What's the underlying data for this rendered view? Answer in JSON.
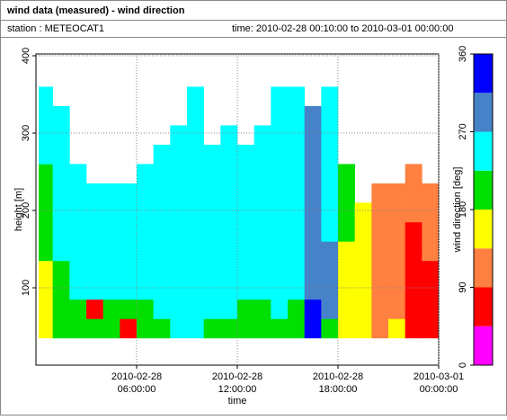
{
  "header": {
    "title": "wind data (measured) - wind direction",
    "station": "station : METEOCAT1",
    "time": "time: 2010-02-28 00:10:00 to 2010-03-01 00:00:00"
  },
  "chart_data": {
    "type": "heatmap",
    "xlabel": "time",
    "ylabel": "height [m]",
    "zlabel": "wind direction [deg]",
    "xlim": [
      "2010-02-28 00:00:00",
      "2010-03-01 00:00:00"
    ],
    "xticks": [
      "2010-02-28 06:00:00",
      "2010-02-28 12:00:00",
      "2010-02-28 18:00:00",
      "2010-03-01 00:00:00"
    ],
    "ylim": [
      0,
      400
    ],
    "yticks": [
      100,
      200,
      300,
      400
    ],
    "zlim": [
      0,
      360
    ],
    "zticks": [
      0,
      90,
      180,
      270,
      360
    ],
    "colors": [
      "#ff00ff",
      "#ff0000",
      "#ff8040",
      "#ffff00",
      "#00e000",
      "#00ffff",
      "#4682c8",
      "#0000ff"
    ],
    "grid": true,
    "xbins": [
      "2010-02-28 00:10:00",
      "2010-02-28 01:00:00",
      "2010-02-28 02:00:00",
      "2010-02-28 03:00:00",
      "2010-02-28 04:00:00",
      "2010-02-28 05:00:00",
      "2010-02-28 06:00:00",
      "2010-02-28 07:00:00",
      "2010-02-28 08:00:00",
      "2010-02-28 09:00:00",
      "2010-02-28 10:00:00",
      "2010-02-28 11:00:00",
      "2010-02-28 12:00:00",
      "2010-02-28 13:00:00",
      "2010-02-28 14:00:00",
      "2010-02-28 15:00:00",
      "2010-02-28 16:00:00",
      "2010-02-28 17:00:00",
      "2010-02-28 18:00:00",
      "2010-02-28 19:00:00",
      "2010-02-28 20:00:00",
      "2010-02-28 21:00:00",
      "2010-02-28 22:00:00",
      "2010-02-28 23:00:00",
      "2010-03-01 00:00:00"
    ],
    "ybins": [
      35,
      60,
      85,
      110,
      135,
      160,
      185,
      210,
      235,
      260,
      285,
      310,
      335,
      360
    ],
    "z": [
      [
        160,
        160,
        160,
        160,
        200,
        200,
        200,
        200,
        200,
        250,
        250,
        250,
        250
      ],
      [
        200,
        200,
        200,
        200,
        250,
        250,
        250,
        250,
        250,
        250,
        250,
        250,
        null
      ],
      [
        200,
        200,
        250,
        250,
        250,
        250,
        250,
        250,
        250,
        null,
        null,
        null,
        null
      ],
      [
        200,
        70,
        250,
        250,
        250,
        250,
        250,
        250,
        null,
        null,
        null,
        null,
        null
      ],
      [
        200,
        200,
        250,
        250,
        250,
        250,
        250,
        250,
        null,
        null,
        null,
        null,
        null
      ],
      [
        70,
        200,
        250,
        250,
        250,
        250,
        250,
        250,
        null,
        null,
        null,
        null,
        null
      ],
      [
        200,
        200,
        250,
        250,
        250,
        250,
        250,
        250,
        250,
        null,
        null,
        null,
        null
      ],
      [
        200,
        250,
        250,
        250,
        250,
        250,
        250,
        250,
        250,
        250,
        null,
        null,
        null
      ],
      [
        250,
        250,
        250,
        250,
        250,
        250,
        250,
        250,
        250,
        250,
        250,
        null,
        null
      ],
      [
        250,
        250,
        250,
        250,
        250,
        250,
        250,
        250,
        250,
        250,
        250,
        250,
        250
      ],
      [
        200,
        250,
        250,
        250,
        250,
        250,
        250,
        250,
        250,
        250,
        null,
        null,
        null
      ],
      [
        200,
        250,
        250,
        250,
        250,
        250,
        250,
        250,
        250,
        250,
        250,
        null,
        null
      ],
      [
        200,
        200,
        250,
        250,
        250,
        250,
        250,
        250,
        250,
        250,
        null,
        null,
        null
      ],
      [
        200,
        200,
        250,
        250,
        250,
        250,
        250,
        250,
        250,
        250,
        250,
        null,
        null
      ],
      [
        200,
        250,
        250,
        250,
        250,
        250,
        250,
        250,
        250,
        250,
        250,
        250,
        250
      ],
      [
        200,
        200,
        250,
        250,
        250,
        250,
        250,
        250,
        250,
        250,
        250,
        250,
        250
      ],
      [
        330,
        330,
        290,
        290,
        290,
        290,
        290,
        290,
        290,
        290,
        290,
        290,
        null
      ],
      [
        200,
        290,
        290,
        290,
        290,
        250,
        250,
        250,
        250,
        250,
        250,
        250,
        250
      ],
      [
        160,
        160,
        160,
        160,
        160,
        200,
        200,
        200,
        200,
        null,
        null,
        null,
        null
      ],
      [
        160,
        160,
        160,
        160,
        160,
        160,
        160,
        null,
        null,
        null,
        null,
        null,
        null
      ],
      [
        110,
        110,
        110,
        110,
        110,
        110,
        110,
        110,
        null,
        null,
        null,
        null,
        null
      ],
      [
        160,
        110,
        110,
        110,
        110,
        110,
        110,
        110,
        null,
        null,
        null,
        null,
        null
      ],
      [
        70,
        70,
        70,
        70,
        70,
        70,
        110,
        110,
        110,
        null,
        null,
        null,
        null
      ],
      [
        70,
        70,
        70,
        70,
        110,
        110,
        110,
        110,
        null,
        null,
        null,
        null,
        null
      ]
    ]
  }
}
